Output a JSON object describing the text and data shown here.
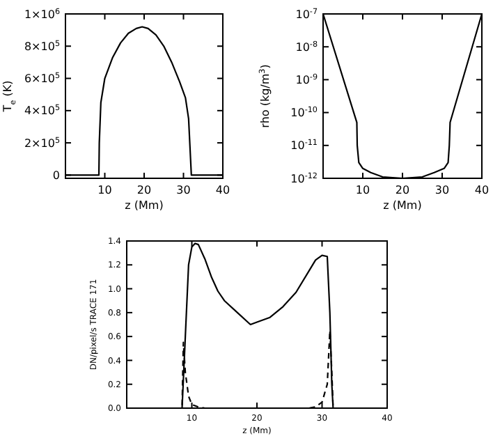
{
  "chart_data": [
    {
      "type": "line",
      "xlabel": "z (Mm)",
      "ylabel": "T$_{e}$ (K)",
      "xlim": [
        0,
        40
      ],
      "xticks": [
        10,
        20,
        30,
        40
      ],
      "ylim": [
        -20000,
        1000000
      ],
      "yticks": [
        {
          "value": 0,
          "label": "0"
        },
        {
          "value": 200000,
          "label": "2×10$^{5}$"
        },
        {
          "value": 400000,
          "label": "4×10$^{5}$"
        },
        {
          "value": 600000,
          "label": "6×10$^{5}$"
        },
        {
          "value": 800000,
          "label": "8×10$^{5}$"
        },
        {
          "value": 1000000,
          "label": "1×10$^{6}$"
        }
      ],
      "series": [
        {
          "color": "#000000",
          "line_style": "solid",
          "x": [
            0,
            8.5,
            8.6,
            9,
            10,
            12,
            14,
            16,
            18,
            19.5,
            21,
            23,
            25,
            27,
            29,
            30.5,
            31.3,
            31.8,
            32,
            40
          ],
          "values": [
            0,
            0,
            200000,
            450000,
            600000,
            730000,
            820000,
            880000,
            910000,
            920000,
            910000,
            870000,
            800000,
            700000,
            580000,
            480000,
            350000,
            100000,
            0,
            0
          ]
        }
      ]
    },
    {
      "type": "line",
      "log": "y",
      "xlabel": "z (Mm)",
      "ylabel": "rho (kg/m$^{3}$)",
      "xlim": [
        0,
        40
      ],
      "xticks": [
        10,
        20,
        30,
        40
      ],
      "ylim": [
        1e-12,
        1e-07
      ],
      "yticks": [
        {
          "value": 1e-12,
          "label": "10$^{-12}$"
        },
        {
          "value": 1e-11,
          "label": "10$^{-11}$"
        },
        {
          "value": 1e-10,
          "label": "10$^{-10}$"
        },
        {
          "value": 1e-09,
          "label": "10$^{-9}$"
        },
        {
          "value": 1e-08,
          "label": "10$^{-8}$"
        },
        {
          "value": 1e-07,
          "label": "10$^{-7}$"
        }
      ],
      "series": [
        {
          "color": "#000000",
          "line_style": "solid",
          "x": [
            0,
            8.5,
            8.6,
            9,
            10,
            12,
            15,
            20,
            25,
            28,
            30.5,
            31.5,
            31.8,
            32,
            40
          ],
          "values": [
            1e-07,
            5e-11,
            1e-11,
            3e-12,
            2e-12,
            1.5e-12,
            1.1e-12,
            1e-12,
            1.1e-12,
            1.5e-12,
            2e-12,
            3e-12,
            1e-11,
            5e-11,
            1e-07
          ]
        }
      ]
    },
    {
      "type": "line",
      "xlabel": "z (Mm)",
      "ylabel": "DN/pixel/s TRACE 171",
      "xlim": [
        0,
        40
      ],
      "xticks": [
        10,
        20,
        30,
        40
      ],
      "ylim": [
        0,
        1.4
      ],
      "yticks": [
        {
          "value": 0,
          "label": "0.0"
        },
        {
          "value": 0.2,
          "label": "0.2"
        },
        {
          "value": 0.4,
          "label": "0.4"
        },
        {
          "value": 0.6,
          "label": "0.6"
        },
        {
          "value": 0.8,
          "label": "0.8"
        },
        {
          "value": 1,
          "label": "1.0"
        },
        {
          "value": 1.2,
          "label": "1.2"
        },
        {
          "value": 1.4,
          "label": "1.4"
        }
      ],
      "series": [
        {
          "color": "#000000",
          "line_style": "solid",
          "x": [
            0,
            8.5,
            9,
            9.5,
            10,
            10.5,
            11,
            12,
            13,
            14,
            15,
            17,
            19,
            20,
            22,
            24,
            26,
            28,
            29,
            30,
            30.8,
            31.2,
            31.5,
            31.7,
            40
          ],
          "values": [
            0,
            0,
            0.6,
            1.2,
            1.35,
            1.38,
            1.37,
            1.25,
            1.1,
            0.98,
            0.9,
            0.8,
            0.7,
            0.72,
            0.76,
            0.85,
            0.97,
            1.15,
            1.24,
            1.28,
            1.27,
            0.8,
            0.2,
            0,
            0
          ]
        },
        {
          "color": "#000000",
          "line_style": "dashed",
          "x": [
            0,
            8.5,
            8.7,
            9,
            9.5,
            10,
            11,
            12,
            28,
            29,
            30,
            30.8,
            31.2,
            31.5,
            31.7,
            40
          ],
          "values": [
            0,
            0,
            0.55,
            0.3,
            0.1,
            0.03,
            0.01,
            0,
            0,
            0.01,
            0.05,
            0.2,
            0.65,
            0.3,
            0,
            0
          ]
        }
      ]
    }
  ]
}
